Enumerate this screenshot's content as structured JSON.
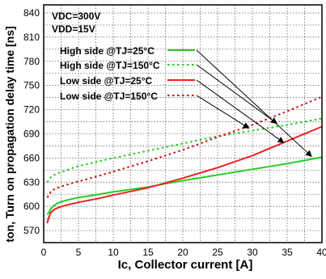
{
  "chart_data": {
    "type": "line",
    "xlabel": "Ic, Collector current [A]",
    "ylabel": "ton, Turn on propagation delay time [ns]",
    "xlim": [
      0,
      40
    ],
    "ylim": [
      555,
      850
    ],
    "xticks": [
      0,
      5,
      10,
      15,
      20,
      25,
      30,
      35,
      40
    ],
    "yticks": [
      570,
      600,
      630,
      660,
      690,
      720,
      750,
      780,
      810,
      840
    ],
    "grid": true,
    "conditions": [
      "VDC=300V",
      "VDD=15V"
    ],
    "legend_position": "upper-left",
    "series": [
      {
        "name": "High side @TJ=25°C",
        "color": "#22cc22",
        "style": "solid",
        "x": [
          0.5,
          0.8,
          1.0,
          1.5,
          2,
          3,
          5,
          8,
          10,
          15,
          20,
          25,
          30,
          35,
          40
        ],
        "y": [
          590,
          593,
          597,
          601,
          604,
          607,
          611,
          615,
          618,
          624,
          632,
          639,
          646,
          653,
          661
        ]
      },
      {
        "name": "High side @TJ=150°C",
        "color": "#22cc22",
        "style": "dotted",
        "x": [
          0.5,
          0.8,
          1.0,
          1.5,
          2,
          3,
          5,
          8,
          10,
          15,
          20,
          25,
          30,
          35,
          40
        ],
        "y": [
          630,
          633,
          636,
          639,
          641,
          644,
          650,
          656,
          660,
          669,
          678,
          687,
          694,
          701,
          709
        ]
      },
      {
        "name": "Low side @TJ=25°C",
        "color": "#ee2222",
        "style": "solid",
        "x": [
          0.5,
          0.7,
          1.0,
          1.5,
          2,
          3,
          5,
          8,
          10,
          15,
          20,
          25,
          30,
          35,
          40
        ],
        "y": [
          579,
          585,
          592,
          596,
          598,
          601,
          605,
          610,
          614,
          623,
          635,
          648,
          663,
          681,
          699
        ]
      },
      {
        "name": "Low side @TJ=150°C",
        "color": "#cc1111",
        "style": "dotted",
        "x": [
          0.5,
          0.8,
          1.0,
          1.5,
          2,
          3,
          5,
          8,
          10,
          15,
          20,
          25,
          30,
          35,
          40
        ],
        "y": [
          611,
          614,
          618,
          621,
          623,
          626,
          631,
          638,
          643,
          656,
          670,
          686,
          701,
          718,
          736
        ]
      }
    ]
  }
}
